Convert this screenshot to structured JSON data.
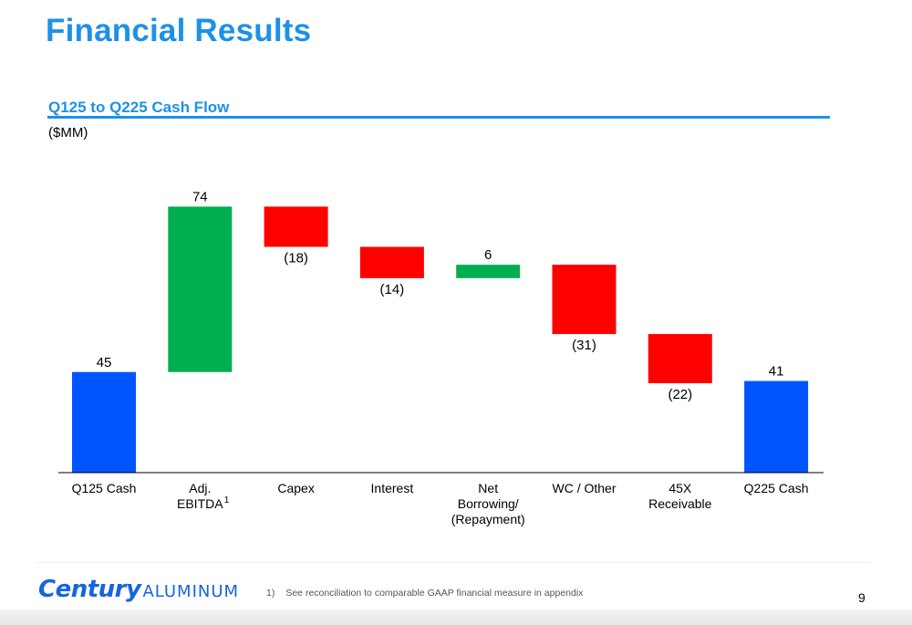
{
  "header": {
    "title": "Financial Results",
    "subtitle": "Q125 to Q225 Cash Flow",
    "units": "($MM)"
  },
  "footer": {
    "logo_bold": "Century",
    "logo_light": "ALUMINUM",
    "footnote_number": "1)",
    "footnote_text": "See reconciliation to comparable GAAP financial measure in appendix",
    "page_number": "9"
  },
  "colors": {
    "title_blue": "#1e90e8",
    "total_bar": "#0055ff",
    "increase_bar": "#00b050",
    "decrease_bar": "#ff0000"
  },
  "chart_data": {
    "type": "bar",
    "subtype": "waterfall",
    "categories": [
      [
        "Q125 Cash"
      ],
      [
        "Adj.",
        "EBITDA"
      ],
      [
        "Capex"
      ],
      [
        "Interest"
      ],
      [
        "Net",
        "Borrowing/",
        "(Repayment)"
      ],
      [
        "WC / Other"
      ],
      [
        "45X",
        "Receivable"
      ],
      [
        "Q225 Cash"
      ]
    ],
    "category_footnotes": [
      "",
      "1",
      "",
      "",
      "",
      "",
      "",
      ""
    ],
    "values": [
      45,
      74,
      -18,
      -14,
      6,
      -31,
      -22,
      41
    ],
    "value_labels": [
      "45",
      "74",
      "(18)",
      "(14)",
      "6",
      "(31)",
      "(22)",
      "41"
    ],
    "kinds": [
      "total",
      "increase",
      "decrease",
      "decrease",
      "increase",
      "decrease",
      "decrease",
      "total"
    ],
    "ylim": [
      0,
      120
    ],
    "grid": false,
    "legend": "none"
  }
}
